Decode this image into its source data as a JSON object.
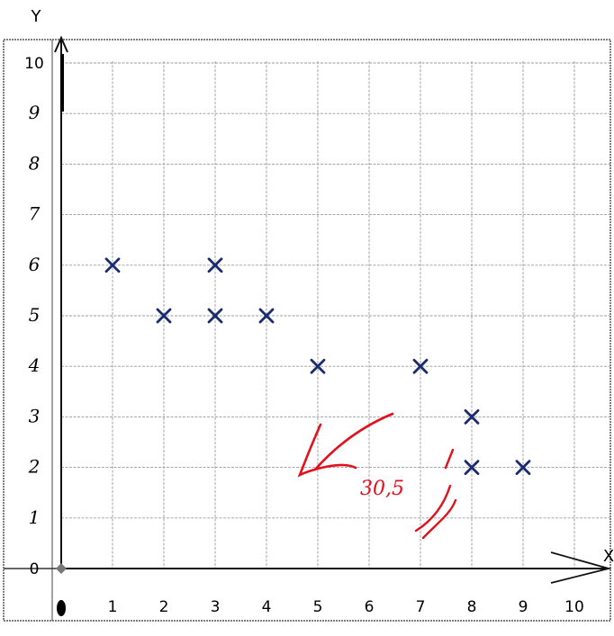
{
  "chart_data": {
    "type": "scatter",
    "xlabel": "X",
    "ylabel": "Y",
    "xlim": [
      0,
      10
    ],
    "ylim": [
      0,
      10
    ],
    "grid": true,
    "x_ticks": [
      "1",
      "2",
      "3",
      "4",
      "5",
      "6",
      "7",
      "8",
      "9",
      "10"
    ],
    "y_ticks": [
      "0",
      "1",
      "2",
      "3",
      "4",
      "5",
      "6",
      "7",
      "8",
      "9",
      "10"
    ],
    "origin_label": "0",
    "series": [
      {
        "marker": "x",
        "color": "#1a2b6e",
        "points": [
          {
            "x": 1,
            "y": 6
          },
          {
            "x": 2,
            "y": 5
          },
          {
            "x": 3,
            "y": 5
          },
          {
            "x": 3,
            "y": 6
          },
          {
            "x": 4,
            "y": 5
          },
          {
            "x": 5,
            "y": 4
          },
          {
            "x": 7,
            "y": 4
          },
          {
            "x": 8,
            "y": 3
          },
          {
            "x": 8,
            "y": 2
          },
          {
            "x": 9,
            "y": 2
          }
        ]
      }
    ],
    "annotation": {
      "text": "30,5",
      "color": "#e0101c"
    }
  }
}
